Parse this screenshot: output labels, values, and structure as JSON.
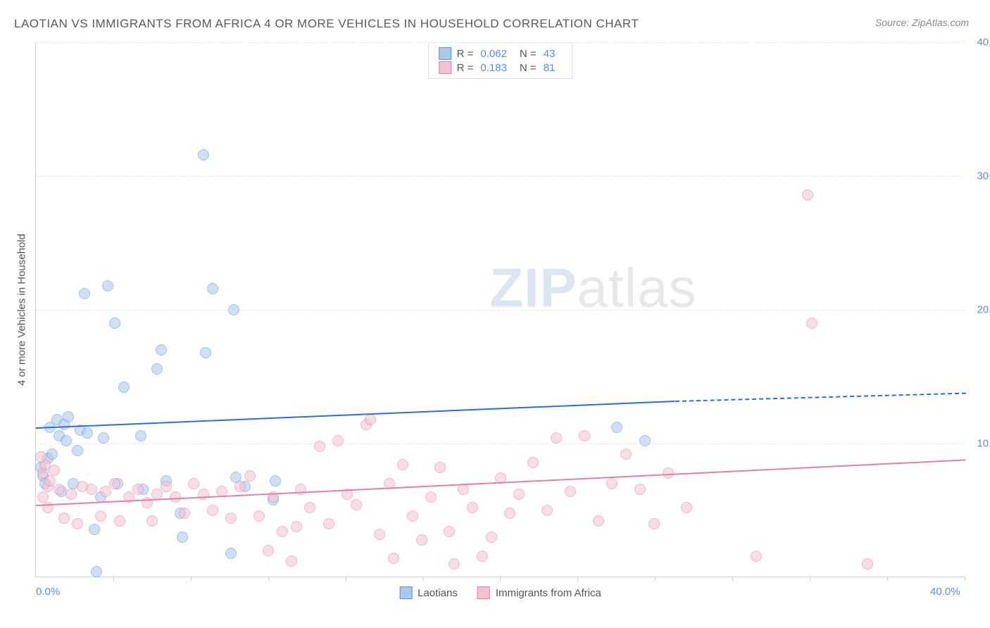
{
  "title": "LAOTIAN VS IMMIGRANTS FROM AFRICA 4 OR MORE VEHICLES IN HOUSEHOLD CORRELATION CHART",
  "source": "Source: ZipAtlas.com",
  "y_axis_label": "4 or more Vehicles in Household",
  "watermark_a": "ZIP",
  "watermark_b": "atlas",
  "chart": {
    "type": "scatter",
    "xlim": [
      0,
      40
    ],
    "ylim": [
      0,
      40
    ],
    "x_ticks": [
      0,
      40
    ],
    "x_tick_labels": [
      "0.0%",
      "40.0%"
    ],
    "x_minor_tick_step": 3.33,
    "y_ticks": [
      10,
      20,
      30,
      40
    ],
    "y_tick_labels": [
      "10.0%",
      "20.0%",
      "30.0%",
      "40.0%"
    ],
    "background_color": "#ffffff",
    "grid_color": "#e8e8e8",
    "axis_color": "#d0d0d0",
    "tick_label_color": "#5b8fd6",
    "title_color": "#5a5a5a",
    "title_fontsize": 17,
    "label_fontsize": 15,
    "marker_radius": 8,
    "marker_opacity": 0.55,
    "series": [
      {
        "name": "Laotians",
        "color_fill": "#a8c8ec",
        "color_stroke": "#5b8fd6",
        "r_value": "0.062",
        "n_value": "43",
        "trend": {
          "x1": 0,
          "y1": 11.2,
          "x2": 27.5,
          "y2": 13.2,
          "color": "#2a6fd6",
          "dash_to_x": 40,
          "dash_to_y": 13.8
        },
        "points": [
          [
            0.2,
            8.2
          ],
          [
            0.3,
            7.6
          ],
          [
            0.5,
            8.9
          ],
          [
            0.7,
            9.2
          ],
          [
            0.6,
            11.2
          ],
          [
            0.9,
            11.8
          ],
          [
            1.0,
            10.6
          ],
          [
            1.2,
            11.4
          ],
          [
            1.3,
            10.2
          ],
          [
            1.4,
            12.0
          ],
          [
            1.1,
            6.4
          ],
          [
            1.6,
            7.0
          ],
          [
            1.8,
            9.5
          ],
          [
            1.9,
            11.0
          ],
          [
            2.2,
            10.8
          ],
          [
            2.1,
            21.2
          ],
          [
            2.5,
            3.6
          ],
          [
            2.6,
            0.4
          ],
          [
            2.8,
            6.0
          ],
          [
            2.9,
            10.4
          ],
          [
            3.1,
            21.8
          ],
          [
            3.4,
            19.0
          ],
          [
            3.5,
            7.0
          ],
          [
            3.8,
            14.2
          ],
          [
            4.5,
            10.6
          ],
          [
            4.6,
            6.6
          ],
          [
            5.2,
            15.6
          ],
          [
            5.4,
            17.0
          ],
          [
            5.6,
            7.2
          ],
          [
            6.2,
            4.8
          ],
          [
            6.3,
            3.0
          ],
          [
            7.2,
            31.6
          ],
          [
            7.3,
            16.8
          ],
          [
            7.6,
            21.6
          ],
          [
            8.4,
            1.8
          ],
          [
            8.5,
            20.0
          ],
          [
            8.6,
            7.5
          ],
          [
            9.0,
            6.8
          ],
          [
            10.2,
            5.8
          ],
          [
            10.3,
            7.2
          ],
          [
            25.0,
            11.2
          ],
          [
            26.2,
            10.2
          ],
          [
            0.4,
            7.0
          ]
        ]
      },
      {
        "name": "Immigrants from Africa",
        "color_fill": "#f4c2d0",
        "color_stroke": "#e67fa3",
        "r_value": "0.183",
        "n_value": "81",
        "trend": {
          "x1": 0,
          "y1": 5.4,
          "x2": 40,
          "y2": 8.8,
          "color": "#e67fa3"
        },
        "points": [
          [
            0.3,
            7.8
          ],
          [
            0.4,
            8.4
          ],
          [
            0.5,
            6.8
          ],
          [
            0.6,
            7.2
          ],
          [
            0.8,
            8.0
          ],
          [
            1.0,
            6.6
          ],
          [
            1.2,
            4.4
          ],
          [
            1.5,
            6.2
          ],
          [
            1.8,
            4.0
          ],
          [
            2.0,
            6.8
          ],
          [
            2.4,
            6.6
          ],
          [
            2.8,
            4.6
          ],
          [
            3.0,
            6.4
          ],
          [
            3.4,
            7.0
          ],
          [
            3.6,
            4.2
          ],
          [
            4.0,
            6.0
          ],
          [
            4.4,
            6.6
          ],
          [
            4.8,
            5.6
          ],
          [
            5.0,
            4.2
          ],
          [
            5.2,
            6.2
          ],
          [
            5.6,
            6.8
          ],
          [
            6.0,
            6.0
          ],
          [
            6.4,
            4.8
          ],
          [
            6.8,
            7.0
          ],
          [
            7.2,
            6.2
          ],
          [
            7.6,
            5.0
          ],
          [
            8.0,
            6.4
          ],
          [
            8.4,
            4.4
          ],
          [
            8.8,
            6.8
          ],
          [
            9.2,
            7.6
          ],
          [
            9.6,
            4.6
          ],
          [
            10.0,
            2.0
          ],
          [
            10.2,
            6.0
          ],
          [
            10.6,
            3.4
          ],
          [
            11.0,
            1.2
          ],
          [
            11.2,
            3.8
          ],
          [
            11.4,
            6.6
          ],
          [
            11.8,
            5.2
          ],
          [
            12.2,
            9.8
          ],
          [
            12.6,
            4.0
          ],
          [
            13.0,
            10.2
          ],
          [
            13.4,
            6.2
          ],
          [
            13.8,
            5.4
          ],
          [
            14.2,
            11.4
          ],
          [
            14.4,
            11.8
          ],
          [
            14.8,
            3.2
          ],
          [
            15.2,
            7.0
          ],
          [
            15.4,
            1.4
          ],
          [
            15.8,
            8.4
          ],
          [
            16.2,
            4.6
          ],
          [
            16.6,
            2.8
          ],
          [
            17.0,
            6.0
          ],
          [
            17.4,
            8.2
          ],
          [
            17.8,
            3.4
          ],
          [
            18.0,
            1.0
          ],
          [
            18.4,
            6.6
          ],
          [
            18.8,
            5.2
          ],
          [
            19.2,
            1.6
          ],
          [
            19.6,
            3.0
          ],
          [
            20.0,
            7.4
          ],
          [
            20.4,
            4.8
          ],
          [
            20.8,
            6.2
          ],
          [
            21.4,
            8.6
          ],
          [
            22.0,
            5.0
          ],
          [
            22.4,
            10.4
          ],
          [
            23.0,
            6.4
          ],
          [
            23.6,
            10.6
          ],
          [
            24.2,
            4.2
          ],
          [
            24.8,
            7.0
          ],
          [
            25.4,
            9.2
          ],
          [
            26.0,
            6.6
          ],
          [
            26.6,
            4.0
          ],
          [
            27.2,
            7.8
          ],
          [
            28.0,
            5.2
          ],
          [
            31.0,
            1.6
          ],
          [
            33.2,
            28.6
          ],
          [
            33.4,
            19.0
          ],
          [
            35.8,
            1.0
          ],
          [
            0.2,
            9.0
          ],
          [
            0.3,
            6.0
          ],
          [
            0.5,
            5.2
          ]
        ]
      }
    ]
  },
  "legend_top_labels": {
    "R": "R =",
    "N": "N ="
  },
  "legend_bottom": [
    {
      "label": "Laotians",
      "fill": "#a8c8ec",
      "stroke": "#5b8fd6"
    },
    {
      "label": "Immigrants from Africa",
      "fill": "#f4c2d0",
      "stroke": "#e67fa3"
    }
  ]
}
